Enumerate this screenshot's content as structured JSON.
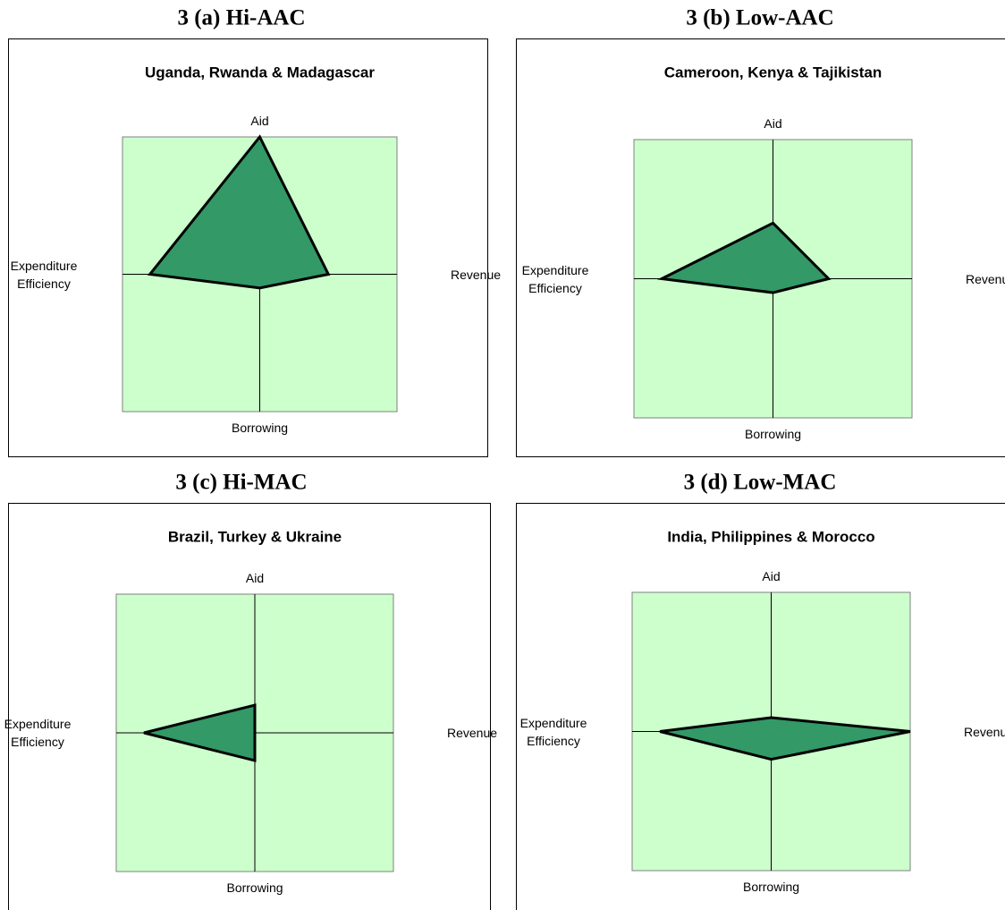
{
  "chart_data": [
    {
      "type": "radar",
      "panel_title": "3 (a) Hi-AAC",
      "title": "Uganda, Rwanda & Madagascar",
      "categories": [
        "Aid",
        "Revenue",
        "Borrowing",
        "Expenditure Efficiency"
      ],
      "values": [
        1.0,
        0.5,
        0.1,
        0.8
      ],
      "rlim": [
        0,
        1
      ],
      "color": "#339966",
      "background": "#ccffcc"
    },
    {
      "type": "radar",
      "panel_title": "3 (b) Low-AAC",
      "title": "Cameroon, Kenya & Tajikistan",
      "categories": [
        "Aid",
        "Revenue",
        "Borrowing",
        "Expenditure Efficiency"
      ],
      "values": [
        0.4,
        0.4,
        0.1,
        0.8
      ],
      "rlim": [
        0,
        1
      ],
      "color": "#339966",
      "background": "#ccffcc"
    },
    {
      "type": "radar",
      "panel_title": "3 (c) Hi-MAC",
      "title": "Brazil, Turkey & Ukraine",
      "categories": [
        "Aid",
        "Revenue",
        "Borrowing",
        "Expenditure Efficiency"
      ],
      "values": [
        0.2,
        0.0,
        0.2,
        0.8
      ],
      "rlim": [
        0,
        1
      ],
      "color": "#339966",
      "background": "#ccffcc"
    },
    {
      "type": "radar",
      "panel_title": "3 (d) Low-MAC",
      "title": "India, Philippines & Morocco",
      "categories": [
        "Aid",
        "Revenue",
        "Borrowing",
        "Expenditure Efficiency"
      ],
      "values": [
        0.1,
        1.0,
        0.2,
        0.8
      ],
      "rlim": [
        0,
        1
      ],
      "color": "#339966",
      "background": "#ccffcc"
    }
  ]
}
